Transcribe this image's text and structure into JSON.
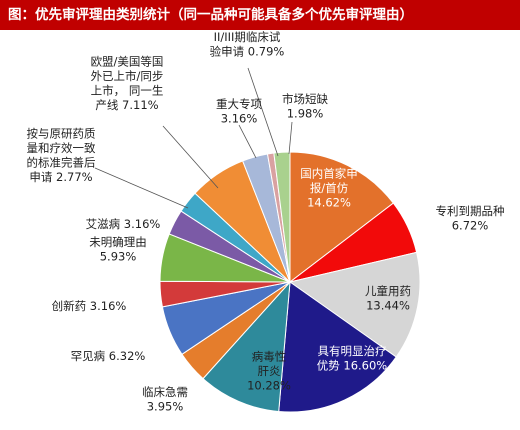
{
  "chart_data": {
    "type": "pie",
    "title": "图：优先审评理由类别统计（同一品种可能具备多个优先审评理由）",
    "slices": [
      {
        "label": "国内首家申报/首仿",
        "value": 14.62,
        "value_text": "14.62%",
        "color": "#e3712b",
        "lines": [
          "国内首家申",
          "报/首仿",
          "14.62%"
        ],
        "text_color": "white"
      },
      {
        "label": "专利到期品种",
        "value": 6.72,
        "value_text": "6.72%",
        "color": "#f20a0a",
        "lines": [
          "专利到期品种",
          "6.72%"
        ],
        "text_color": "dark"
      },
      {
        "label": "儿童用药",
        "value": 13.44,
        "value_text": "13.44%",
        "color": "#d6d6d6",
        "lines": [
          "儿童用药",
          "13.44%"
        ],
        "text_color": "dark"
      },
      {
        "label": "具有明显治疗优势",
        "value": 16.6,
        "value_text": "16.60%",
        "color": "#1f1a8a",
        "lines": [
          "具有明显治疗",
          "优势 16.60%"
        ],
        "text_color": "white"
      },
      {
        "label": "病毒性肝炎",
        "value": 10.28,
        "value_text": "10.28%",
        "color": "#2e8a9b",
        "lines": [
          "病毒性",
          "肝炎",
          "10.28%"
        ],
        "text_color": "dark"
      },
      {
        "label": "临床急需",
        "value": 3.95,
        "value_text": "3.95%",
        "color": "#e57d2c",
        "lines": [
          "临床急需",
          "3.95%"
        ],
        "text_color": "dark"
      },
      {
        "label": "罕见病",
        "value": 6.32,
        "value_text": "6.32%",
        "color": "#4a74c4",
        "lines": [
          "罕见病 6.32%"
        ],
        "text_color": "dark"
      },
      {
        "label": "创新药",
        "value": 3.16,
        "value_text": "3.16%",
        "color": "#d33a3a",
        "lines": [
          "创新药 3.16%"
        ],
        "text_color": "dark"
      },
      {
        "label": "未明确理由",
        "value": 5.93,
        "value_text": "5.93%",
        "color": "#7ab648",
        "lines": [
          "未明确理由",
          "5.93%"
        ],
        "text_color": "dark"
      },
      {
        "label": "艾滋病",
        "value": 3.16,
        "value_text": "3.16%",
        "color": "#7b5aa6",
        "lines": [
          "艾滋病 3.16%"
        ],
        "text_color": "dark"
      },
      {
        "label": "按与原研药质量和疗效一致的标准完善后申请",
        "value": 2.77,
        "value_text": "2.77%",
        "color": "#3ea7c7",
        "lines": [
          "按与原研药质",
          "量和疗效一致",
          "的标准完善后",
          "申请 2.77%"
        ],
        "text_color": "dark"
      },
      {
        "label": "欧盟/美国等国外已上市/同步上市，同一生产线",
        "value": 7.11,
        "value_text": "7.11%",
        "color": "#f08d35",
        "lines": [
          "欧盟/美国等国",
          "外已上市/同步",
          "上市， 同一生",
          "产线 7.11%"
        ],
        "text_color": "dark"
      },
      {
        "label": "重大专项",
        "value": 3.16,
        "value_text": "3.16%",
        "color": "#a7b8d9",
        "lines": [
          "重大专项",
          "3.16%"
        ],
        "text_color": "dark"
      },
      {
        "label": "II/III期临床试验申请",
        "value": 0.79,
        "value_text": "0.79%",
        "color": "#d9a1a1",
        "lines": [
          "II/III期临床试",
          "验申请 0.79%"
        ],
        "text_color": "dark"
      },
      {
        "label": "市场短缺",
        "value": 1.98,
        "value_text": "1.98%",
        "color": "#a9d18e",
        "lines": [
          "市场短缺",
          "1.98%"
        ],
        "text_color": "dark"
      }
    ]
  }
}
